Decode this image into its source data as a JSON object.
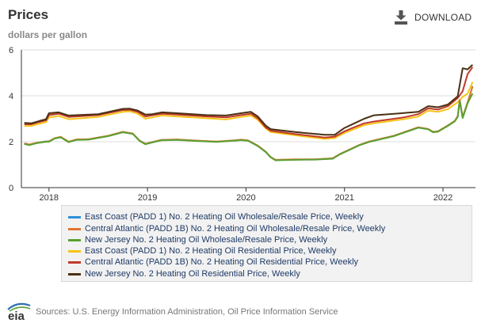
{
  "header": {
    "title": "Prices",
    "subtitle": "dollars per gallon",
    "download_label": "DOWNLOAD"
  },
  "footer": {
    "logo_text": "eia",
    "source": "Sources: U.S. Energy Information Administration, Oil Price Information Service"
  },
  "chart_data": {
    "type": "line",
    "title": "Prices",
    "ylabel": "dollars per gallon",
    "xlabel": "",
    "x_range": [
      2017.72,
      2022.33
    ],
    "ylim": [
      0,
      6
    ],
    "x_ticks": [
      2018,
      2019,
      2020,
      2021,
      2022
    ],
    "x_tick_labels": [
      "2018",
      "2019",
      "2020",
      "2021",
      "2022"
    ],
    "y_ticks": [
      0,
      2,
      4,
      6
    ],
    "y_tick_labels": [
      "0",
      "2",
      "4",
      "6"
    ],
    "grid": "horizontal",
    "legend_position": "bottom",
    "series": [
      {
        "name": "East Coast (PADD 1) No. 2 Heating Oil Wholesale/Resale Price, Weekly",
        "color": "#2f8fd8",
        "points": [
          [
            2017.75,
            1.92
          ],
          [
            2017.8,
            1.87
          ],
          [
            2017.88,
            1.95
          ],
          [
            2017.96,
            2.01
          ],
          [
            2018.0,
            2.01
          ],
          [
            2018.06,
            2.15
          ],
          [
            2018.12,
            2.2
          ],
          [
            2018.2,
            1.99
          ],
          [
            2018.28,
            2.09
          ],
          [
            2018.4,
            2.1
          ],
          [
            2018.6,
            2.25
          ],
          [
            2018.75,
            2.42
          ],
          [
            2018.85,
            2.35
          ],
          [
            2018.92,
            2.04
          ],
          [
            2018.98,
            1.9
          ],
          [
            2019.05,
            1.98
          ],
          [
            2019.14,
            2.07
          ],
          [
            2019.3,
            2.09
          ],
          [
            2019.5,
            2.04
          ],
          [
            2019.7,
            2.0
          ],
          [
            2019.88,
            2.05
          ],
          [
            2019.95,
            2.08
          ],
          [
            2020.02,
            2.05
          ],
          [
            2020.12,
            1.82
          ],
          [
            2020.2,
            1.56
          ],
          [
            2020.25,
            1.33
          ],
          [
            2020.3,
            1.2
          ],
          [
            2020.5,
            1.22
          ],
          [
            2020.7,
            1.23
          ],
          [
            2020.8,
            1.25
          ],
          [
            2020.88,
            1.27
          ],
          [
            2020.95,
            1.45
          ],
          [
            2021.05,
            1.65
          ],
          [
            2021.15,
            1.85
          ],
          [
            2021.25,
            2.0
          ],
          [
            2021.5,
            2.25
          ],
          [
            2021.75,
            2.62
          ],
          [
            2021.85,
            2.55
          ],
          [
            2021.9,
            2.42
          ],
          [
            2021.95,
            2.45
          ],
          [
            2022.05,
            2.7
          ],
          [
            2022.12,
            2.9
          ],
          [
            2022.15,
            3.1
          ],
          [
            2022.17,
            3.8
          ],
          [
            2022.2,
            3.05
          ],
          [
            2022.25,
            3.7
          ],
          [
            2022.3,
            4.42
          ]
        ]
      },
      {
        "name": "Central Atlantic (PADD 1B) No. 2 Heating Oil Wholesale/Resale Price, Weekly",
        "color": "#e0762e",
        "points": [
          [
            2017.75,
            1.93
          ],
          [
            2017.8,
            1.88
          ],
          [
            2017.88,
            1.96
          ],
          [
            2017.96,
            2.0
          ],
          [
            2018.0,
            2.02
          ],
          [
            2018.06,
            2.16
          ],
          [
            2018.12,
            2.21
          ],
          [
            2018.2,
            2.0
          ],
          [
            2018.28,
            2.1
          ],
          [
            2018.4,
            2.11
          ],
          [
            2018.6,
            2.26
          ],
          [
            2018.75,
            2.43
          ],
          [
            2018.85,
            2.36
          ],
          [
            2018.92,
            2.05
          ],
          [
            2018.98,
            1.91
          ],
          [
            2019.05,
            1.99
          ],
          [
            2019.14,
            2.08
          ],
          [
            2019.3,
            2.1
          ],
          [
            2019.5,
            2.05
          ],
          [
            2019.7,
            2.01
          ],
          [
            2019.88,
            2.06
          ],
          [
            2019.95,
            2.09
          ],
          [
            2020.02,
            2.06
          ],
          [
            2020.12,
            1.83
          ],
          [
            2020.2,
            1.57
          ],
          [
            2020.25,
            1.33
          ],
          [
            2020.3,
            1.21
          ],
          [
            2020.5,
            1.23
          ],
          [
            2020.7,
            1.23
          ],
          [
            2020.8,
            1.26
          ],
          [
            2020.88,
            1.28
          ],
          [
            2020.95,
            1.46
          ],
          [
            2021.05,
            1.66
          ],
          [
            2021.15,
            1.86
          ],
          [
            2021.25,
            2.01
          ],
          [
            2021.5,
            2.26
          ],
          [
            2021.75,
            2.63
          ],
          [
            2021.85,
            2.56
          ],
          [
            2021.9,
            2.43
          ],
          [
            2021.95,
            2.46
          ],
          [
            2022.05,
            2.71
          ],
          [
            2022.12,
            2.91
          ],
          [
            2022.15,
            3.12
          ],
          [
            2022.17,
            3.82
          ],
          [
            2022.2,
            3.08
          ],
          [
            2022.25,
            3.72
          ],
          [
            2022.3,
            4.4
          ]
        ]
      },
      {
        "name": "New Jersey No. 2 Heating Oil Wholesale/Resale Price, Weekly",
        "color": "#5aa032",
        "points": [
          [
            2017.75,
            1.9
          ],
          [
            2017.8,
            1.85
          ],
          [
            2017.88,
            1.94
          ],
          [
            2017.96,
            1.99
          ],
          [
            2018.0,
            2.0
          ],
          [
            2018.06,
            2.14
          ],
          [
            2018.12,
            2.19
          ],
          [
            2018.2,
            1.98
          ],
          [
            2018.28,
            2.08
          ],
          [
            2018.4,
            2.09
          ],
          [
            2018.6,
            2.24
          ],
          [
            2018.75,
            2.41
          ],
          [
            2018.85,
            2.34
          ],
          [
            2018.92,
            2.03
          ],
          [
            2018.98,
            1.89
          ],
          [
            2019.05,
            1.97
          ],
          [
            2019.14,
            2.06
          ],
          [
            2019.3,
            2.08
          ],
          [
            2019.5,
            2.03
          ],
          [
            2019.7,
            1.99
          ],
          [
            2019.88,
            2.04
          ],
          [
            2019.95,
            2.07
          ],
          [
            2020.02,
            2.04
          ],
          [
            2020.12,
            1.81
          ],
          [
            2020.2,
            1.55
          ],
          [
            2020.25,
            1.32
          ],
          [
            2020.3,
            1.19
          ],
          [
            2020.5,
            1.21
          ],
          [
            2020.7,
            1.22
          ],
          [
            2020.8,
            1.24
          ],
          [
            2020.88,
            1.26
          ],
          [
            2020.95,
            1.44
          ],
          [
            2021.05,
            1.64
          ],
          [
            2021.15,
            1.84
          ],
          [
            2021.25,
            1.99
          ],
          [
            2021.5,
            2.24
          ],
          [
            2021.75,
            2.61
          ],
          [
            2021.85,
            2.54
          ],
          [
            2021.9,
            2.41
          ],
          [
            2021.95,
            2.44
          ],
          [
            2022.05,
            2.69
          ],
          [
            2022.12,
            2.89
          ],
          [
            2022.15,
            3.08
          ],
          [
            2022.17,
            3.78
          ],
          [
            2022.2,
            3.03
          ],
          [
            2022.25,
            3.68
          ],
          [
            2022.3,
            4.1
          ]
        ]
      },
      {
        "name": "East Coast (PADD 1) No. 2 Heating Oil Residential Price, Weekly",
        "color": "#f5c518",
        "points": [
          [
            2017.75,
            2.68
          ],
          [
            2017.82,
            2.69
          ],
          [
            2017.9,
            2.78
          ],
          [
            2017.97,
            2.85
          ],
          [
            2018.0,
            3.06
          ],
          [
            2018.1,
            3.12
          ],
          [
            2018.2,
            2.98
          ],
          [
            2018.5,
            3.08
          ],
          [
            2018.75,
            3.3
          ],
          [
            2018.82,
            3.32
          ],
          [
            2018.9,
            3.22
          ],
          [
            2018.98,
            3.0
          ],
          [
            2019.05,
            3.06
          ],
          [
            2019.15,
            3.14
          ],
          [
            2019.3,
            3.1
          ],
          [
            2019.6,
            3.02
          ],
          [
            2019.8,
            2.97
          ],
          [
            2019.95,
            3.08
          ],
          [
            2020.05,
            3.14
          ],
          [
            2020.12,
            2.95
          ],
          [
            2020.2,
            2.58
          ],
          [
            2020.25,
            2.42
          ],
          [
            2020.5,
            2.28
          ],
          [
            2020.8,
            2.12
          ],
          [
            2020.9,
            2.16
          ],
          [
            2021.0,
            2.38
          ],
          [
            2021.1,
            2.55
          ],
          [
            2021.2,
            2.72
          ],
          [
            2021.3,
            2.8
          ],
          [
            2021.6,
            2.98
          ],
          [
            2021.75,
            3.1
          ],
          [
            2021.85,
            3.35
          ],
          [
            2021.95,
            3.3
          ],
          [
            2022.05,
            3.42
          ],
          [
            2022.15,
            3.72
          ],
          [
            2022.2,
            3.95
          ],
          [
            2022.25,
            4.1
          ],
          [
            2022.3,
            4.6
          ]
        ]
      },
      {
        "name": "Central Atlantic (PADD 1B) No. 2 Heating Oil Residential Price, Weekly",
        "color": "#c0392b",
        "points": [
          [
            2017.75,
            2.76
          ],
          [
            2017.82,
            2.76
          ],
          [
            2017.9,
            2.86
          ],
          [
            2017.97,
            2.93
          ],
          [
            2018.0,
            3.16
          ],
          [
            2018.1,
            3.22
          ],
          [
            2018.2,
            3.08
          ],
          [
            2018.5,
            3.16
          ],
          [
            2018.75,
            3.38
          ],
          [
            2018.82,
            3.39
          ],
          [
            2018.9,
            3.3
          ],
          [
            2018.98,
            3.1
          ],
          [
            2019.05,
            3.15
          ],
          [
            2019.15,
            3.22
          ],
          [
            2019.3,
            3.18
          ],
          [
            2019.6,
            3.1
          ],
          [
            2019.8,
            3.06
          ],
          [
            2019.95,
            3.16
          ],
          [
            2020.05,
            3.22
          ],
          [
            2020.12,
            3.02
          ],
          [
            2020.2,
            2.62
          ],
          [
            2020.25,
            2.48
          ],
          [
            2020.5,
            2.33
          ],
          [
            2020.8,
            2.18
          ],
          [
            2020.9,
            2.22
          ],
          [
            2021.0,
            2.45
          ],
          [
            2021.1,
            2.63
          ],
          [
            2021.2,
            2.8
          ],
          [
            2021.3,
            2.88
          ],
          [
            2021.6,
            3.06
          ],
          [
            2021.75,
            3.2
          ],
          [
            2021.85,
            3.45
          ],
          [
            2021.95,
            3.4
          ],
          [
            2022.05,
            3.55
          ],
          [
            2022.15,
            3.9
          ],
          [
            2022.2,
            4.2
          ],
          [
            2022.25,
            4.95
          ],
          [
            2022.3,
            5.25
          ]
        ]
      },
      {
        "name": "New Jersey No. 2 Heating Oil Residential Price, Weekly",
        "color": "#4a3012",
        "points": [
          [
            2017.75,
            2.82
          ],
          [
            2017.82,
            2.8
          ],
          [
            2017.9,
            2.9
          ],
          [
            2017.97,
            2.98
          ],
          [
            2018.0,
            3.24
          ],
          [
            2018.1,
            3.28
          ],
          [
            2018.2,
            3.14
          ],
          [
            2018.5,
            3.2
          ],
          [
            2018.75,
            3.43
          ],
          [
            2018.82,
            3.44
          ],
          [
            2018.9,
            3.36
          ],
          [
            2018.98,
            3.18
          ],
          [
            2019.05,
            3.2
          ],
          [
            2019.15,
            3.28
          ],
          [
            2019.3,
            3.24
          ],
          [
            2019.6,
            3.16
          ],
          [
            2019.8,
            3.14
          ],
          [
            2019.95,
            3.24
          ],
          [
            2020.05,
            3.3
          ],
          [
            2020.12,
            3.1
          ],
          [
            2020.2,
            2.7
          ],
          [
            2020.25,
            2.55
          ],
          [
            2020.5,
            2.42
          ],
          [
            2020.8,
            2.3
          ],
          [
            2020.9,
            2.3
          ],
          [
            2021.0,
            2.6
          ],
          [
            2021.1,
            2.8
          ],
          [
            2021.2,
            3.0
          ],
          [
            2021.3,
            3.15
          ],
          [
            2021.6,
            3.25
          ],
          [
            2021.75,
            3.3
          ],
          [
            2021.85,
            3.55
          ],
          [
            2021.95,
            3.5
          ],
          [
            2022.05,
            3.62
          ],
          [
            2022.15,
            3.98
          ],
          [
            2022.2,
            5.2
          ],
          [
            2022.25,
            5.15
          ],
          [
            2022.3,
            5.35
          ]
        ]
      }
    ]
  }
}
